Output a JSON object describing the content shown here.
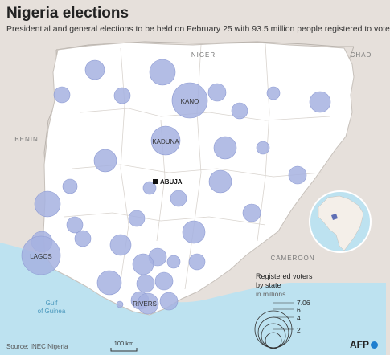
{
  "header": {
    "title": "Nigeria elections",
    "subtitle": "Presidential and general elections to be held on February 25 with 93.5 million people registered to vote"
  },
  "countries": {
    "niger": "NIGER",
    "chad": "CHAD",
    "benin": "BENIN",
    "cameroon": "CAMEROON"
  },
  "water": {
    "gulf": "Gulf",
    "of_guinea": "of Guinea"
  },
  "cities": {
    "kano": "KANO",
    "kaduna": "KADUNA",
    "abuja": "ABUJA",
    "lagos": "LAGOS",
    "rivers": "RIVERS"
  },
  "scale": {
    "label": "100 km"
  },
  "legend": {
    "title_line1": "Registered voters",
    "title_line2": "by state",
    "unit": "in millions",
    "values": [
      "7.06",
      "6",
      "4",
      "2"
    ]
  },
  "footer": {
    "source": "Source: INEC Nigeria",
    "logo": "AFP"
  },
  "colors": {
    "background": "#e6e0db",
    "land": "#ffffff",
    "sea": "#bde2f0",
    "bubble": "#a6b2e1",
    "bubble_stroke": "#8e9bd3",
    "border": "#b9b3ad",
    "afp_blue": "#1e7fcf"
  }
}
